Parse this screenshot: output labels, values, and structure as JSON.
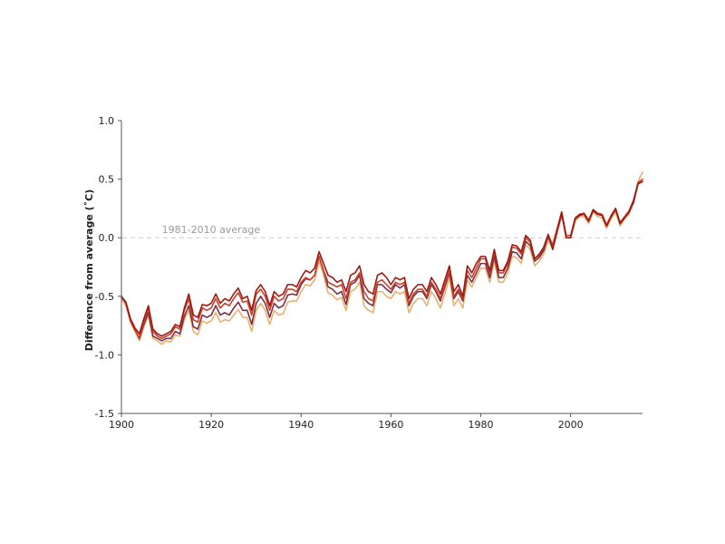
{
  "chart_data": {
    "type": "line",
    "title": "",
    "xlabel": "",
    "ylabel": "Difference from average (˚C)",
    "xlim": [
      1900,
      2016
    ],
    "ylim": [
      -1.5,
      1.0
    ],
    "x_ticks": [
      1900,
      1920,
      1940,
      1960,
      1980,
      2000
    ],
    "y_ticks": [
      -1.5,
      -1.0,
      -0.5,
      0.0,
      0.5,
      1.0
    ],
    "y_tick_labels": [
      "-1.5",
      "-1.0",
      "-0.5",
      "0.0",
      "0.5",
      "1.0"
    ],
    "grid": false,
    "legend": "none",
    "reference_line": {
      "y": 0.0,
      "label": "1981-2010 average",
      "color": "#cccccc"
    },
    "x": [
      1900,
      1901,
      1902,
      1903,
      1904,
      1905,
      1906,
      1907,
      1908,
      1909,
      1910,
      1911,
      1912,
      1913,
      1914,
      1915,
      1916,
      1917,
      1918,
      1919,
      1920,
      1921,
      1922,
      1923,
      1924,
      1925,
      1926,
      1927,
      1928,
      1929,
      1930,
      1931,
      1932,
      1933,
      1934,
      1935,
      1936,
      1937,
      1938,
      1939,
      1940,
      1941,
      1942,
      1943,
      1944,
      1945,
      1946,
      1947,
      1948,
      1949,
      1950,
      1951,
      1952,
      1953,
      1954,
      1955,
      1956,
      1957,
      1958,
      1959,
      1960,
      1961,
      1962,
      1963,
      1964,
      1965,
      1966,
      1967,
      1968,
      1969,
      1970,
      1971,
      1972,
      1973,
      1974,
      1975,
      1976,
      1977,
      1978,
      1979,
      1980,
      1981,
      1982,
      1983,
      1984,
      1985,
      1986,
      1987,
      1988,
      1989,
      1990,
      1991,
      1992,
      1993,
      1994,
      1995,
      1996,
      1997,
      1998,
      1999,
      2000,
      2001,
      2002,
      2003,
      2004,
      2005,
      2006,
      2007,
      2008,
      2009,
      2010,
      2011,
      2012,
      2013,
      2014,
      2015,
      2016
    ],
    "series": [
      {
        "color": "#e8b070",
        "values": [
          -0.52,
          -0.58,
          -0.72,
          -0.8,
          -0.88,
          -0.76,
          -0.66,
          -0.86,
          -0.88,
          -0.91,
          -0.88,
          -0.89,
          -0.83,
          -0.84,
          -0.7,
          -0.62,
          -0.8,
          -0.83,
          -0.71,
          -0.73,
          -0.71,
          -0.64,
          -0.72,
          -0.7,
          -0.71,
          -0.66,
          -0.61,
          -0.68,
          -0.68,
          -0.8,
          -0.62,
          -0.56,
          -0.62,
          -0.74,
          -0.62,
          -0.66,
          -0.65,
          -0.55,
          -0.54,
          -0.54,
          -0.46,
          -0.4,
          -0.41,
          -0.36,
          -0.2,
          -0.32,
          -0.47,
          -0.49,
          -0.53,
          -0.51,
          -0.62,
          -0.46,
          -0.44,
          -0.38,
          -0.58,
          -0.62,
          -0.64,
          -0.46,
          -0.46,
          -0.5,
          -0.52,
          -0.46,
          -0.48,
          -0.46,
          -0.64,
          -0.56,
          -0.52,
          -0.52,
          -0.58,
          -0.46,
          -0.52,
          -0.6,
          -0.48,
          -0.34,
          -0.58,
          -0.52,
          -0.6,
          -0.36,
          -0.42,
          -0.34,
          -0.26,
          -0.26,
          -0.38,
          -0.2,
          -0.38,
          -0.38,
          -0.3,
          -0.16,
          -0.17,
          -0.22,
          -0.06,
          -0.1,
          -0.24,
          -0.2,
          -0.14,
          -0.02,
          -0.1,
          0.04,
          0.19,
          0.0,
          0.0,
          0.14,
          0.18,
          0.18,
          0.12,
          0.22,
          0.18,
          0.17,
          0.08,
          0.16,
          0.22,
          0.1,
          0.16,
          0.2,
          0.3,
          0.48,
          0.56
        ]
      },
      {
        "color": "#7a3040",
        "values": [
          -0.5,
          -0.56,
          -0.7,
          -0.78,
          -0.86,
          -0.74,
          -0.64,
          -0.84,
          -0.86,
          -0.88,
          -0.86,
          -0.86,
          -0.8,
          -0.82,
          -0.67,
          -0.58,
          -0.76,
          -0.78,
          -0.66,
          -0.68,
          -0.66,
          -0.58,
          -0.66,
          -0.64,
          -0.66,
          -0.6,
          -0.55,
          -0.62,
          -0.62,
          -0.74,
          -0.56,
          -0.5,
          -0.56,
          -0.68,
          -0.56,
          -0.6,
          -0.58,
          -0.49,
          -0.48,
          -0.49,
          -0.4,
          -0.35,
          -0.36,
          -0.32,
          -0.16,
          -0.28,
          -0.42,
          -0.44,
          -0.48,
          -0.46,
          -0.57,
          -0.4,
          -0.38,
          -0.32,
          -0.52,
          -0.56,
          -0.58,
          -0.4,
          -0.4,
          -0.44,
          -0.47,
          -0.4,
          -0.43,
          -0.4,
          -0.58,
          -0.5,
          -0.46,
          -0.46,
          -0.52,
          -0.4,
          -0.46,
          -0.54,
          -0.42,
          -0.3,
          -0.52,
          -0.46,
          -0.54,
          -0.32,
          -0.38,
          -0.3,
          -0.22,
          -0.22,
          -0.34,
          -0.16,
          -0.34,
          -0.34,
          -0.26,
          -0.12,
          -0.13,
          -0.18,
          -0.03,
          -0.07,
          -0.2,
          -0.17,
          -0.11,
          0.01,
          -0.08,
          0.06,
          0.2,
          0.02,
          0.02,
          0.16,
          0.19,
          0.2,
          0.14,
          0.23,
          0.2,
          0.19,
          0.1,
          0.18,
          0.24,
          0.12,
          0.17,
          0.22,
          0.3,
          0.46,
          0.48
        ]
      },
      {
        "color": "#c84030",
        "values": [
          -0.5,
          -0.56,
          -0.71,
          -0.79,
          -0.85,
          -0.72,
          -0.6,
          -0.8,
          -0.84,
          -0.86,
          -0.84,
          -0.82,
          -0.76,
          -0.78,
          -0.62,
          -0.52,
          -0.7,
          -0.72,
          -0.6,
          -0.62,
          -0.6,
          -0.52,
          -0.6,
          -0.56,
          -0.58,
          -0.52,
          -0.47,
          -0.55,
          -0.54,
          -0.66,
          -0.48,
          -0.44,
          -0.5,
          -0.62,
          -0.5,
          -0.54,
          -0.52,
          -0.44,
          -0.44,
          -0.46,
          -0.38,
          -0.34,
          -0.36,
          -0.32,
          -0.16,
          -0.28,
          -0.38,
          -0.4,
          -0.42,
          -0.4,
          -0.52,
          -0.38,
          -0.36,
          -0.3,
          -0.46,
          -0.52,
          -0.54,
          -0.38,
          -0.36,
          -0.4,
          -0.44,
          -0.38,
          -0.4,
          -0.38,
          -0.56,
          -0.48,
          -0.44,
          -0.44,
          -0.5,
          -0.38,
          -0.44,
          -0.52,
          -0.4,
          -0.28,
          -0.5,
          -0.44,
          -0.52,
          -0.28,
          -0.34,
          -0.26,
          -0.18,
          -0.18,
          -0.3,
          -0.12,
          -0.3,
          -0.3,
          -0.22,
          -0.08,
          -0.09,
          -0.14,
          0.0,
          -0.04,
          -0.18,
          -0.15,
          -0.09,
          0.02,
          -0.06,
          0.08,
          0.22,
          0.02,
          0.02,
          0.17,
          0.2,
          0.21,
          0.15,
          0.24,
          0.21,
          0.2,
          0.11,
          0.19,
          0.25,
          0.13,
          0.18,
          0.23,
          0.32,
          0.47,
          0.5
        ]
      },
      {
        "color": "#9e1a10",
        "values": [
          -0.5,
          -0.55,
          -0.69,
          -0.77,
          -0.82,
          -0.69,
          -0.58,
          -0.78,
          -0.82,
          -0.84,
          -0.82,
          -0.8,
          -0.74,
          -0.76,
          -0.6,
          -0.48,
          -0.66,
          -0.68,
          -0.57,
          -0.58,
          -0.56,
          -0.48,
          -0.56,
          -0.52,
          -0.54,
          -0.48,
          -0.43,
          -0.52,
          -0.5,
          -0.62,
          -0.45,
          -0.4,
          -0.46,
          -0.58,
          -0.46,
          -0.5,
          -0.48,
          -0.4,
          -0.4,
          -0.42,
          -0.34,
          -0.28,
          -0.3,
          -0.26,
          -0.12,
          -0.22,
          -0.32,
          -0.34,
          -0.38,
          -0.36,
          -0.46,
          -0.32,
          -0.3,
          -0.24,
          -0.4,
          -0.46,
          -0.48,
          -0.32,
          -0.3,
          -0.34,
          -0.4,
          -0.34,
          -0.36,
          -0.34,
          -0.52,
          -0.44,
          -0.4,
          -0.4,
          -0.46,
          -0.34,
          -0.4,
          -0.48,
          -0.36,
          -0.24,
          -0.46,
          -0.4,
          -0.5,
          -0.24,
          -0.3,
          -0.22,
          -0.16,
          -0.16,
          -0.28,
          -0.1,
          -0.28,
          -0.28,
          -0.2,
          -0.06,
          -0.07,
          -0.12,
          0.02,
          -0.02,
          -0.18,
          -0.14,
          -0.08,
          0.03,
          -0.1,
          0.06,
          0.22,
          0.0,
          0.0,
          0.16,
          0.2,
          0.2,
          0.14,
          0.24,
          0.2,
          0.19,
          0.1,
          0.18,
          0.25,
          0.12,
          0.17,
          0.22,
          0.32,
          0.46,
          0.48
        ]
      }
    ]
  }
}
